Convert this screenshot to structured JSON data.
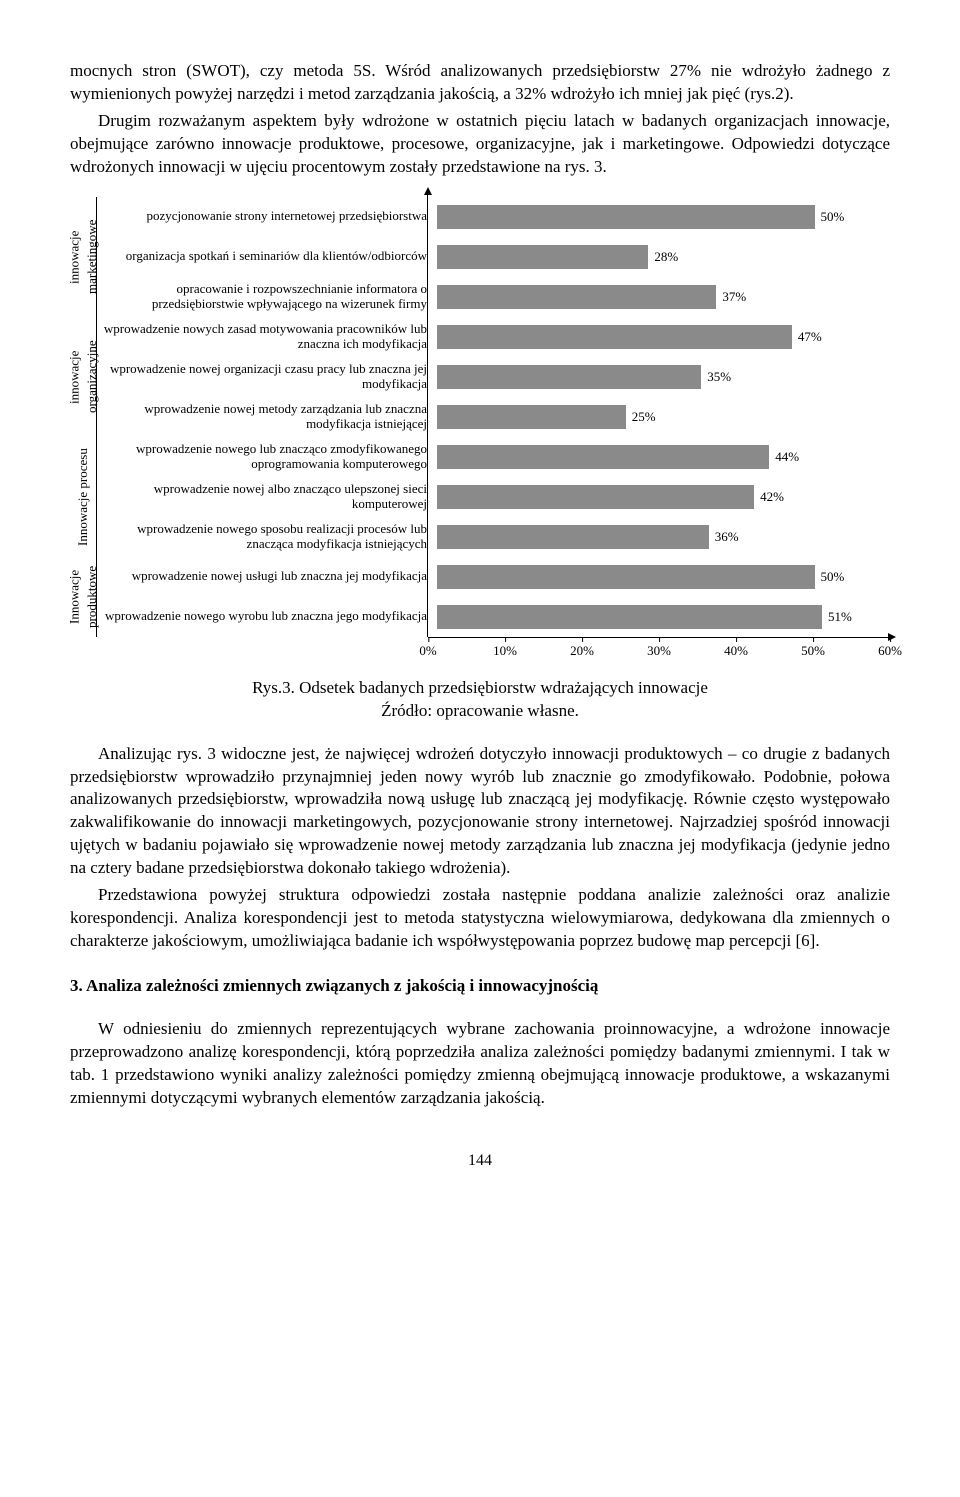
{
  "para1": "mocnych stron (SWOT), czy metoda 5S. Wśród analizowanych przedsiębiorstw 27% nie wdrożyło żadnego z wymienionych powyżej narzędzi i metod zarządzania jakością, a 32% wdrożyło ich mniej jak pięć (rys.2).",
  "para2": "Drugim rozważanym aspektem były wdrożone w ostatnich pięciu latach w badanych organizacjach innowacje, obejmujące zarówno innowacje produktowe, procesowe, organizacyjne, jak i marketingowe. Odpowiedzi dotyczące wdrożonych innowacji w ujęciu procentowym zostały przedstawione na rys. 3.",
  "chart": {
    "groups": [
      {
        "label": "innowacje marketingowe",
        "rows": [
          0,
          1,
          2
        ]
      },
      {
        "label": "innowacje organizacyjne",
        "rows": [
          3,
          4,
          5
        ]
      },
      {
        "label": "Innowacje procesu",
        "rows": [
          6,
          7,
          8
        ]
      },
      {
        "label": "Innowacje produktowe",
        "rows": [
          9,
          10
        ]
      }
    ],
    "rows": [
      {
        "label": "pozycjonowanie strony internetowej przedsiębiorstwa",
        "value": 50
      },
      {
        "label": "organizacja spotkań i seminariów dla klientów/odbiorców",
        "value": 28
      },
      {
        "label": "opracowanie i rozpowszechnianie informatora o przedsiębiorstwie wpływającego na wizerunek firmy",
        "value": 37
      },
      {
        "label": "wprowadzenie nowych zasad motywowania pracowników lub znaczna ich modyfikacja",
        "value": 47
      },
      {
        "label": "wprowadzenie nowej organizacji czasu pracy lub znaczna jej modyfikacja",
        "value": 35
      },
      {
        "label": "wprowadzenie nowej metody zarządzania lub znaczna modyfikacja istniejącej",
        "value": 25
      },
      {
        "label": "wprowadzenie nowego lub znacząco zmodyfikowanego oprogramowania komputerowego",
        "value": 44
      },
      {
        "label": "wprowadzenie nowej albo znacząco ulepszonej sieci komputerowej",
        "value": 42
      },
      {
        "label": "wprowadzenie nowego sposobu realizacji procesów lub znacząca modyfikacja istniejących",
        "value": 36
      },
      {
        "label": "wprowadzenie nowej usługi lub znaczna jej modyfikacja",
        "value": 50
      },
      {
        "label": "wprowadzenie nowego wyrobu lub znaczna jego modyfikacja",
        "value": 51
      }
    ],
    "bar_color": "#8a8a8a",
    "xmax": 60,
    "xticks": [
      0,
      10,
      20,
      30,
      40,
      50,
      60
    ],
    "label_fontsize": 13
  },
  "caption1": "Rys.3. Odsetek badanych przedsiębiorstw wdrażających innowacje",
  "caption2": "Źródło: opracowanie własne.",
  "para3": "Analizując rys. 3 widoczne jest, że najwięcej wdrożeń dotyczyło innowacji produktowych – co drugie z badanych przedsiębiorstw wprowadziło przynajmniej jeden nowy wyrób lub znacznie go zmodyfikowało. Podobnie, połowa analizowanych przedsiębiorstw, wprowadziła nową usługę lub znaczącą jej modyfikację. Równie często występowało zakwalifikowanie do innowacji marketingowych, pozycjonowanie strony internetowej. Najrzadziej spośród innowacji ujętych w badaniu pojawiało się wprowadzenie nowej metody zarządzania lub znaczna jej modyfikacja (jedynie jedno na cztery badane przedsiębiorstwa dokonało takiego wdrożenia).",
  "para4": "Przedstawiona powyżej struktura odpowiedzi została następnie poddana analizie zależności oraz analizie korespondencji. Analiza korespondencji jest to metoda statystyczna wielowymiarowa, dedykowana dla zmiennych o charakterze jakościowym, umożliwiająca badanie ich współwystępowania poprzez budowę map percepcji [6].",
  "section": "3. Analiza zależności zmiennych związanych z jakością i innowacyjnością",
  "para5": "W odniesieniu do zmiennych reprezentujących wybrane zachowania proinnowacyjne, a wdrożone innowacje przeprowadzono analizę korespondencji, którą poprzedziła analiza zależności pomiędzy badanymi zmiennymi. I tak w tab. 1 przedstawiono wyniki analizy zależności pomiędzy zmienną obejmującą innowacje produktowe, a wskazanymi zmiennymi dotyczącymi wybranych elementów zarządzania jakością.",
  "pagenum": "144"
}
